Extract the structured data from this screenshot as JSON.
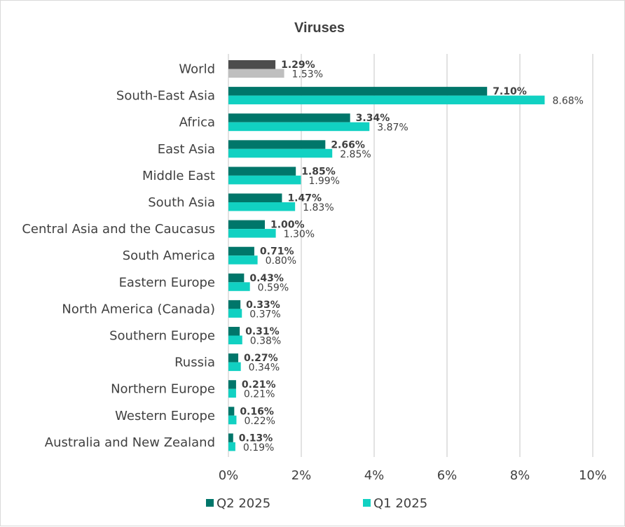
{
  "chart_data": {
    "type": "bar",
    "orientation": "horizontal",
    "title": "Viruses",
    "categories": [
      "World",
      "South-East Asia",
      "Africa",
      "East Asia",
      "Middle East",
      "South Asia",
      "Central Asia and the Caucasus",
      "South America",
      "Eastern Europe",
      "North America (Canada)",
      "Southern Europe",
      "Russia",
      "Northern Europe",
      "Western Europe",
      "Australia and New Zealand"
    ],
    "series": [
      {
        "name": "Q2 2025",
        "color": "#00766a",
        "highlight_color": "#4d4d4d",
        "values": [
          1.29,
          7.1,
          3.34,
          2.66,
          1.85,
          1.47,
          1.0,
          0.71,
          0.43,
          0.33,
          0.31,
          0.27,
          0.21,
          0.16,
          0.13
        ],
        "labels": [
          "1.29%",
          "7.10%",
          "3.34%",
          "2.66%",
          "1.85%",
          "1.47%",
          "1.00%",
          "0.71%",
          "0.43%",
          "0.33%",
          "0.31%",
          "0.27%",
          "0.21%",
          "0.16%",
          "0.13%"
        ]
      },
      {
        "name": "Q1 2025",
        "color": "#11d1c2",
        "highlight_color": "#bfbfbf",
        "values": [
          1.53,
          8.68,
          3.87,
          2.85,
          1.99,
          1.83,
          1.3,
          0.8,
          0.59,
          0.37,
          0.38,
          0.34,
          0.21,
          0.22,
          0.19
        ],
        "labels": [
          "1.53%",
          "8.68%",
          "3.87%",
          "2.85%",
          "1.99%",
          "1.83%",
          "1.30%",
          "0.80%",
          "0.59%",
          "0.37%",
          "0.38%",
          "0.34%",
          "0.21%",
          "0.22%",
          "0.19%"
        ]
      }
    ],
    "highlighted_category": "World",
    "xlim": [
      0,
      10
    ],
    "x_ticks": [
      0,
      2,
      4,
      6,
      8,
      10
    ],
    "x_tick_labels": [
      "0%",
      "2%",
      "4%",
      "6%",
      "8%",
      "10%"
    ],
    "grid": true,
    "legend_position": "bottom",
    "colors": {
      "gridline": "#d9d9d9",
      "text": "#404040"
    }
  }
}
